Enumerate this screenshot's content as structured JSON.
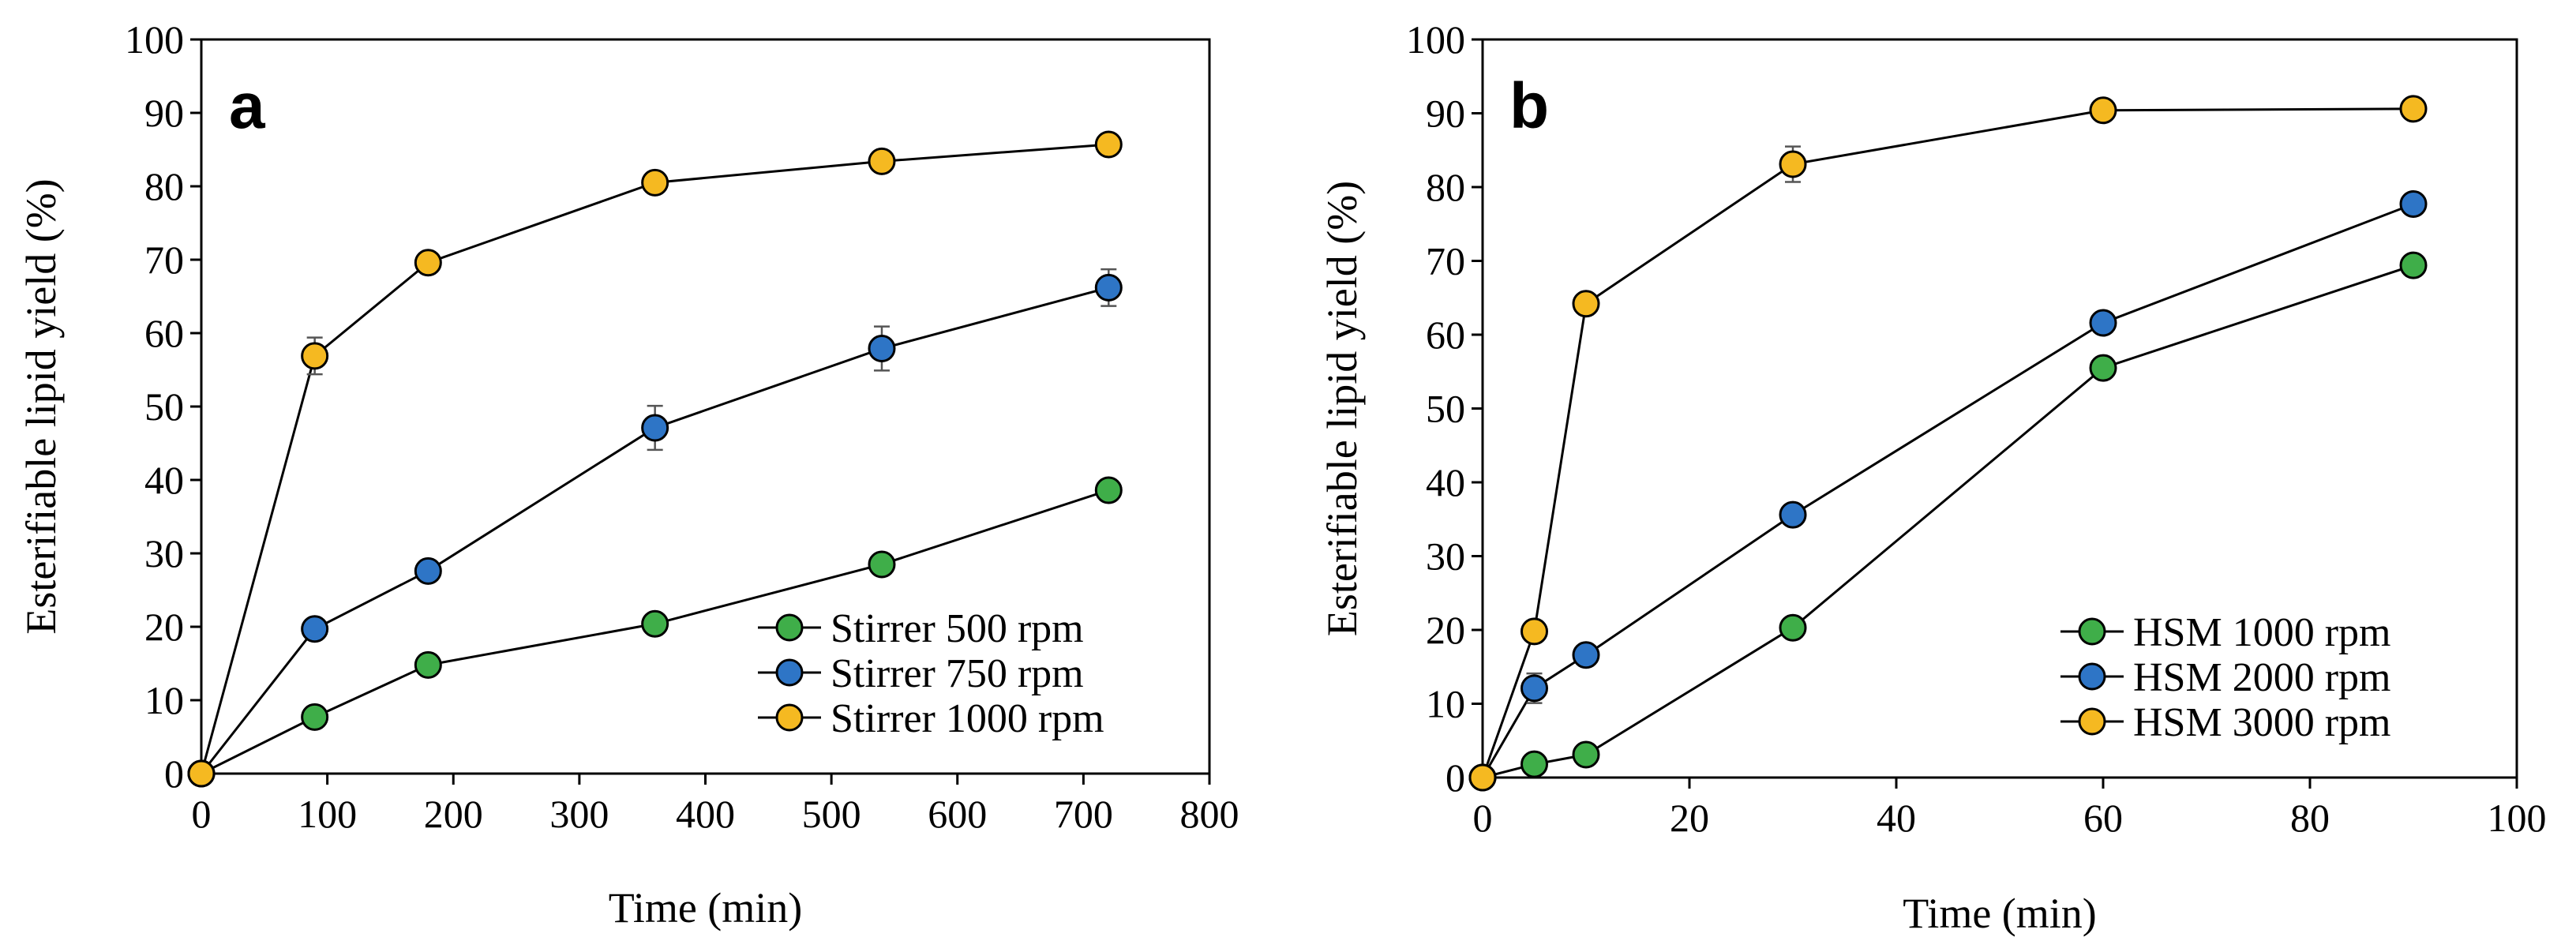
{
  "chart_data": [
    {
      "type": "line",
      "panel_label": "a",
      "xlabel": "Time (min)",
      "ylabel": "Esterifiable lipid yield (%)",
      "xlim": [
        0,
        800
      ],
      "ylim": [
        0,
        100
      ],
      "xticks": [
        0,
        100,
        200,
        300,
        400,
        500,
        600,
        700,
        800
      ],
      "yticks": [
        0,
        10,
        20,
        30,
        40,
        50,
        60,
        70,
        80,
        90,
        100
      ],
      "grid": false,
      "legend_position": "bottom-right",
      "series": [
        {
          "name": "Stirrer 500 rpm",
          "color": "#3fae49",
          "x": [
            0,
            90,
            180,
            360,
            540,
            720
          ],
          "y": [
            0,
            7.7,
            14.8,
            20.4,
            28.5,
            38.6
          ],
          "err": [
            0,
            0,
            0,
            0,
            0,
            0
          ]
        },
        {
          "name": "Stirrer 750 rpm",
          "color": "#2e75c6",
          "x": [
            0,
            90,
            180,
            360,
            540,
            720
          ],
          "y": [
            0,
            19.7,
            27.6,
            47.1,
            57.9,
            66.2
          ],
          "err": [
            0,
            0,
            0,
            3.0,
            3.0,
            2.5
          ]
        },
        {
          "name": "Stirrer 1000 rpm",
          "color": "#f5b921",
          "x": [
            0,
            90,
            180,
            360,
            540,
            720
          ],
          "y": [
            0,
            56.9,
            69.6,
            80.5,
            83.4,
            85.7
          ],
          "err": [
            0,
            2.5,
            0,
            0,
            0,
            0
          ]
        }
      ]
    },
    {
      "type": "line",
      "panel_label": "b",
      "xlabel": "Time (min)",
      "ylabel": "Esterifiable lipid yield (%)",
      "xlim": [
        0,
        100
      ],
      "ylim": [
        0,
        100
      ],
      "xticks": [
        0,
        20,
        40,
        60,
        80,
        100
      ],
      "yticks": [
        0,
        10,
        20,
        30,
        40,
        50,
        60,
        70,
        80,
        90,
        100
      ],
      "grid": false,
      "legend_position": "bottom-right",
      "series": [
        {
          "name": "HSM 1000 rpm",
          "color": "#3fae49",
          "x": [
            0,
            5,
            10,
            30,
            60,
            90
          ],
          "y": [
            0,
            1.8,
            3.1,
            20.3,
            55.5,
            69.4
          ],
          "err": [
            0,
            0,
            0,
            0,
            0,
            0
          ]
        },
        {
          "name": "HSM 2000 rpm",
          "color": "#2e75c6",
          "x": [
            0,
            5,
            10,
            30,
            60,
            90
          ],
          "y": [
            0,
            12.1,
            16.6,
            35.6,
            61.6,
            77.7
          ],
          "err": [
            0,
            2.0,
            0,
            0,
            0,
            0
          ]
        },
        {
          "name": "HSM 3000 rpm",
          "color": "#f5b921",
          "x": [
            0,
            5,
            10,
            30,
            60,
            90
          ],
          "y": [
            0,
            19.8,
            64.2,
            83.1,
            90.4,
            90.6
          ],
          "err": [
            0,
            0,
            0,
            2.4,
            0,
            0
          ]
        }
      ]
    }
  ]
}
